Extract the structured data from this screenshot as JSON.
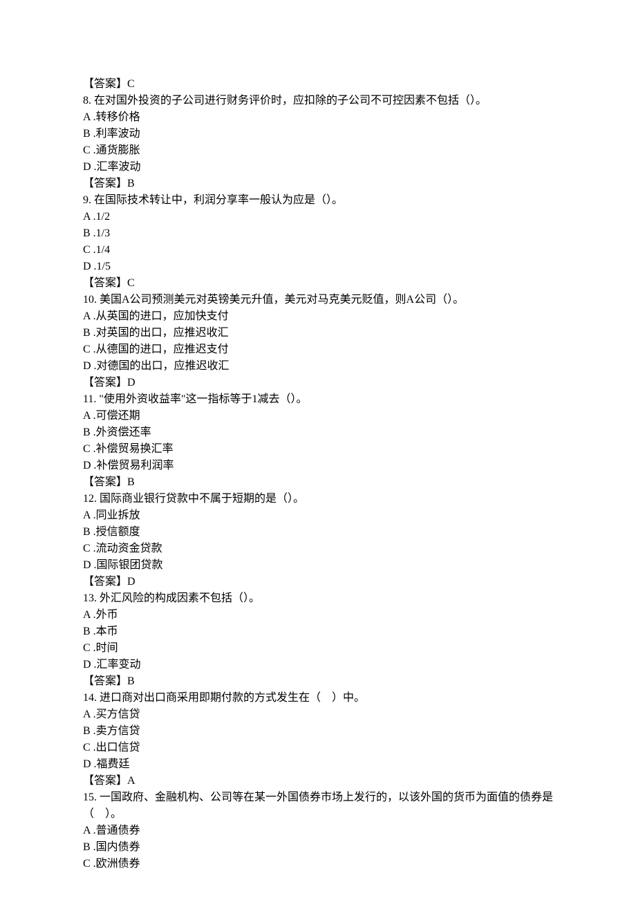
{
  "answer_label": "【答案】",
  "questions": [
    {
      "prefix_answer_letter": "C",
      "number": "8.",
      "text": " 在对国外投资的子公司进行财务评价时，应扣除的子公司不可控因素不包括（）。",
      "options": [
        "A .转移价格",
        "B .利率波动",
        "C .通货膨胀",
        "D .汇率波动"
      ],
      "answer_letter": "B"
    },
    {
      "number": "9.",
      "text": " 在国际技术转让中，利润分享率一般认为应是（）。",
      "options": [
        "A .1/2",
        "B .1/3",
        "C .1/4",
        "D .1/5"
      ],
      "answer_letter": "C"
    },
    {
      "number": "10.",
      "text": " 美国A公司预测美元对英镑美元升值，美元对马克美元贬值，则A公司（）。",
      "options": [
        "A .从英国的进口，应加快支付",
        "B .对英国的出口，应推迟收汇",
        "C .从德国的进口，应推迟支付",
        "D .对德国的出口，应推迟收汇"
      ],
      "answer_letter": "D"
    },
    {
      "number": "11.",
      "text": " \"使用外资收益率\"这一指标等于1减去（）。",
      "options": [
        "A .可偿还期",
        "B .外资偿还率",
        "C .补偿贸易换汇率",
        "D .补偿贸易利润率"
      ],
      "answer_letter": "B"
    },
    {
      "number": "12.",
      "text": " 国际商业银行贷款中不属于短期的是（）。",
      "options": [
        "A .同业拆放",
        "B .授信额度",
        "C .流动资金贷款",
        "D .国际银团贷款"
      ],
      "answer_letter": "D"
    },
    {
      "number": "13.",
      "text": " 外汇风险的构成因素不包括（）。",
      "options": [
        "A .外币",
        "B .本币",
        "C .时间",
        "D .汇率变动"
      ],
      "answer_letter": "B"
    },
    {
      "number": "14.",
      "text": " 进口商对出口商采用即期付款的方式发生在（　）中。",
      "options": [
        "A .买方信贷",
        "B .卖方信贷",
        "C .出口信贷",
        "D .福费廷"
      ],
      "answer_letter": "A"
    },
    {
      "number": "15.",
      "text": " 一国政府、金融机构、公司等在某一外国债券市场上发行的，以该外国的货币为面值的债券是（　）。",
      "options": [
        "A .普通债券",
        "B .国内债券",
        "C .欧洲债券"
      ],
      "answer_letter": null
    }
  ]
}
